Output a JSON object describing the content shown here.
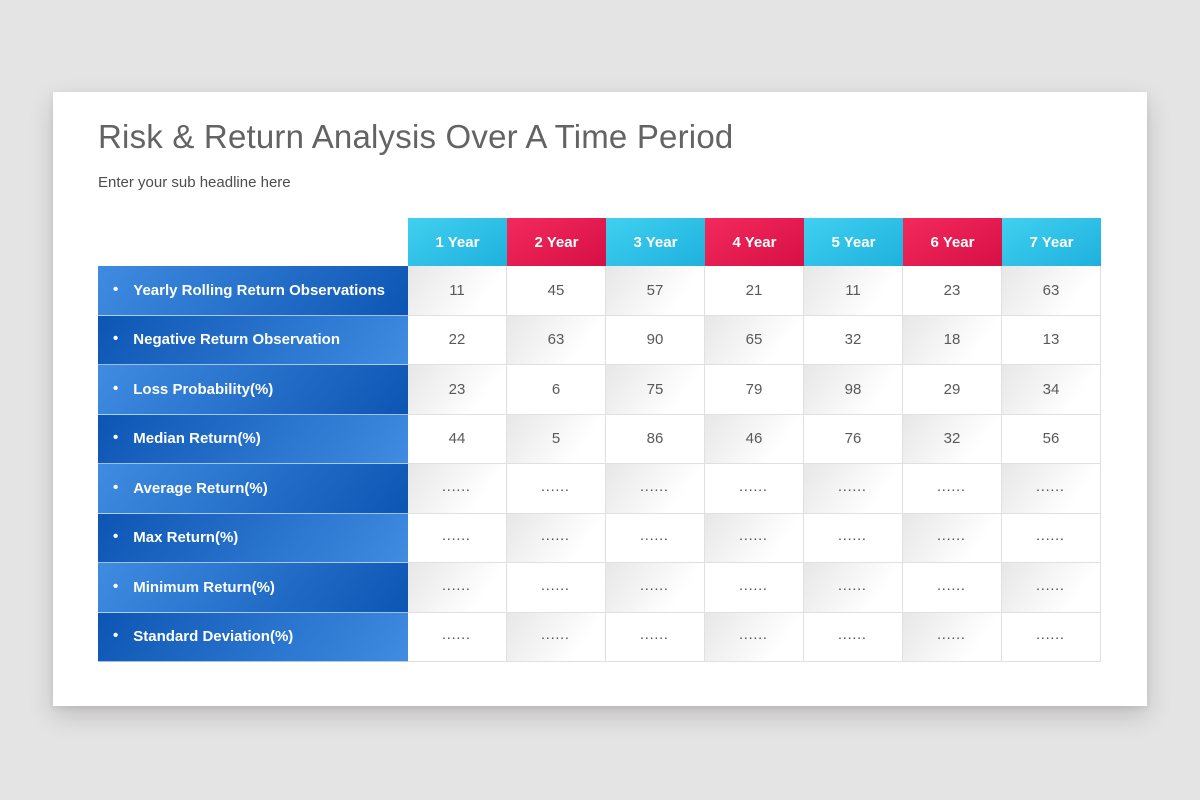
{
  "slide": {
    "title": "Risk & Return Analysis Over A Time Period",
    "subtitle": "Enter your sub headline here"
  },
  "table": {
    "bullet": "•",
    "column_headers": [
      {
        "label": "1 Year",
        "variant": "cyan"
      },
      {
        "label": "2 Year",
        "variant": "red"
      },
      {
        "label": "3 Year",
        "variant": "cyan"
      },
      {
        "label": "4 Year",
        "variant": "red"
      },
      {
        "label": "5 Year",
        "variant": "cyan"
      },
      {
        "label": "6 Year",
        "variant": "red"
      },
      {
        "label": "7 Year",
        "variant": "cyan"
      }
    ],
    "rows": [
      {
        "label": "Yearly Rolling Return Observations",
        "values": [
          "11",
          "45",
          "57",
          "21",
          "11",
          "23",
          "63"
        ]
      },
      {
        "label": "Negative Return Observation",
        "values": [
          "22",
          "63",
          "90",
          "65",
          "32",
          "18",
          "13"
        ]
      },
      {
        "label": "Loss Probability(%)",
        "values": [
          "23",
          "6",
          "75",
          "79",
          "98",
          "29",
          "34"
        ]
      },
      {
        "label": "Median Return(%)",
        "values": [
          "44",
          "5",
          "86",
          "46",
          "76",
          "32",
          "56"
        ]
      },
      {
        "label": "Average Return(%)",
        "values": [
          "......",
          "......",
          "......",
          "......",
          "......",
          "......",
          "......"
        ]
      },
      {
        "label": "Max Return(%)",
        "values": [
          "......",
          "......",
          "......",
          "......",
          "......",
          "......",
          "......"
        ]
      },
      {
        "label": "Minimum Return(%)",
        "values": [
          "......",
          "......",
          "......",
          "......",
          "......",
          "......",
          "......"
        ]
      },
      {
        "label": "Standard Deviation(%)",
        "values": [
          "......",
          "......",
          "......",
          "......",
          "......",
          "......",
          "......"
        ]
      }
    ]
  },
  "colors": {
    "page_background": "#E5E4E4",
    "card_background": "#FFFFFF",
    "title_text": "#636363",
    "subtitle_text": "#4D4D4D",
    "cyan_gradient_start": "#40D0F0",
    "cyan_gradient_end": "#1EB1DD",
    "red_gradient_start": "#F32A5C",
    "red_gradient_end": "#D60F45",
    "blue_gradient_light": "#3F8CE1",
    "blue_gradient_dark": "#0D55B3",
    "cell_text": "#595959",
    "cell_shade": "#E7E7E7",
    "grid_line": "#E0E0E0",
    "header_text": "#FFFFFF"
  }
}
